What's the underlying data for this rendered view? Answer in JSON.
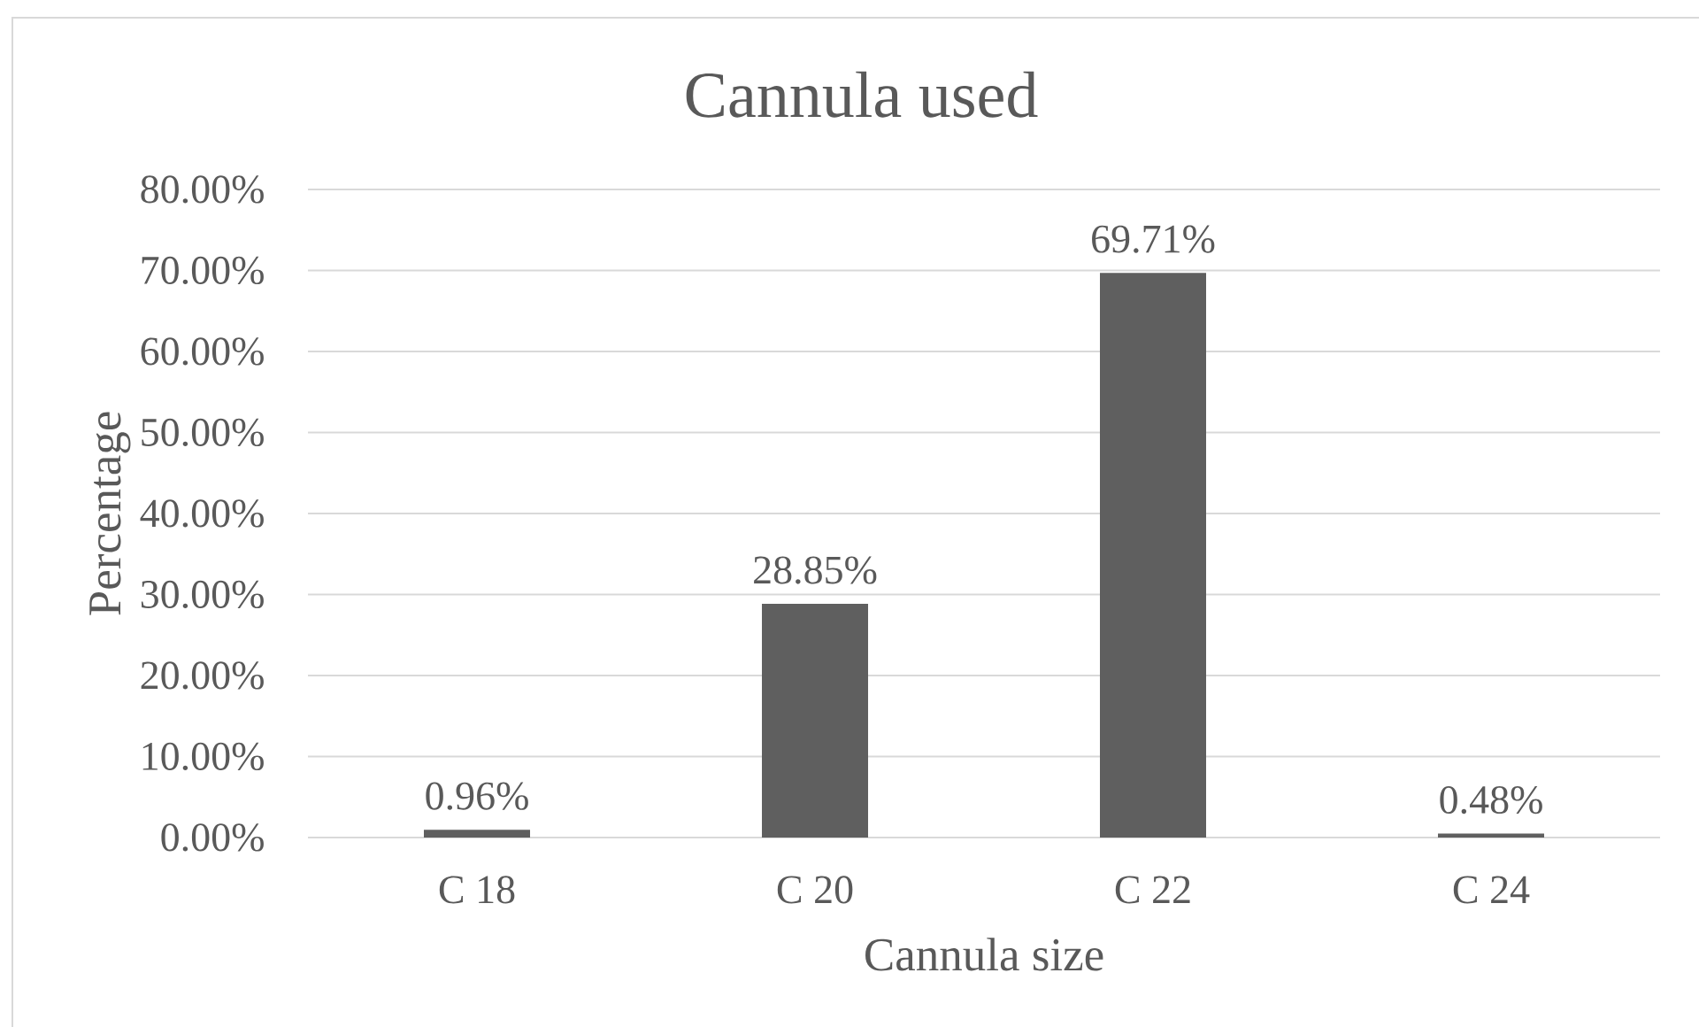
{
  "chart_data": {
    "type": "bar",
    "title": "Cannula used",
    "xlabel": "Cannula size",
    "ylabel": "Percentage",
    "categories": [
      "C 18",
      "C 20",
      "C 22",
      "C 24"
    ],
    "values": [
      0.96,
      28.85,
      69.71,
      0.48
    ],
    "color": "#5f5f5f",
    "value_labels": [
      "0.96%",
      "28.85%",
      "69.71%",
      "0.48%"
    ],
    "ylim": [
      0,
      80
    ],
    "yticks": [
      {
        "value": 0,
        "label": "0.00%"
      },
      {
        "value": 10,
        "label": "10.00%"
      },
      {
        "value": 20,
        "label": "20.00%"
      },
      {
        "value": 30,
        "label": "30.00%"
      },
      {
        "value": 40,
        "label": "40.00%"
      },
      {
        "value": 50,
        "label": "50.00%"
      },
      {
        "value": 60,
        "label": "60.00%"
      },
      {
        "value": 70,
        "label": "70.00%"
      },
      {
        "value": 80,
        "label": "80.00%"
      }
    ],
    "grid": "y"
  }
}
